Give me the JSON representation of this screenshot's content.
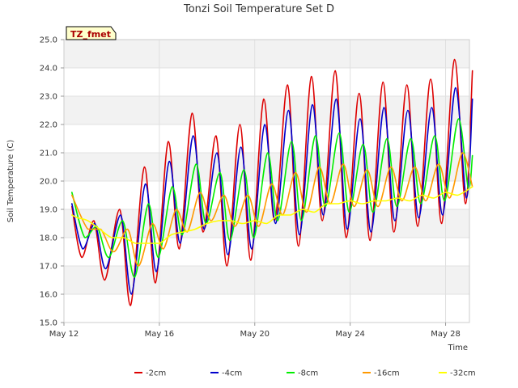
{
  "chart_data": {
    "type": "line",
    "title": "Tonzi Soil Temperature Set D",
    "xlabel": "Time",
    "ylabel": "Soil Temperature (C)",
    "annotation": "TZ_fmet",
    "ylim": [
      15.0,
      25.0
    ],
    "yticks": [
      "15.0",
      "16.0",
      "17.0",
      "18.0",
      "19.0",
      "20.0",
      "21.0",
      "22.0",
      "23.0",
      "24.0",
      "25.0"
    ],
    "xlim": [
      "2024-05-12",
      "2024-05-29"
    ],
    "xticks": [
      {
        "label": "May 12",
        "date": "2024-05-12"
      },
      {
        "label": "May 16",
        "date": "2024-05-16"
      },
      {
        "label": "May 20",
        "date": "2024-05-20"
      },
      {
        "label": "May 24",
        "date": "2024-05-24"
      },
      {
        "label": "May 28",
        "date": "2024-05-28"
      }
    ],
    "grid": true,
    "legend_position": "bottom",
    "series": [
      {
        "name": "-2cm",
        "color": "#dd0000",
        "points": [
          [
            "2024-05-12T08:00",
            19.1
          ],
          [
            "2024-05-12T18:00",
            17.3
          ],
          [
            "2024-05-13T06:00",
            18.6
          ],
          [
            "2024-05-13T17:00",
            16.5
          ],
          [
            "2024-05-14T08:00",
            19.0
          ],
          [
            "2024-05-14T19:00",
            15.6
          ],
          [
            "2024-05-15T09:00",
            20.5
          ],
          [
            "2024-05-15T20:00",
            16.4
          ],
          [
            "2024-05-16T09:00",
            21.4
          ],
          [
            "2024-05-16T20:00",
            17.6
          ],
          [
            "2024-05-17T09:00",
            22.4
          ],
          [
            "2024-05-17T20:00",
            18.2
          ],
          [
            "2024-05-18T09:00",
            21.6
          ],
          [
            "2024-05-18T20:00",
            17.0
          ],
          [
            "2024-05-19T09:00",
            22.0
          ],
          [
            "2024-05-19T20:00",
            17.2
          ],
          [
            "2024-05-20T09:00",
            22.9
          ],
          [
            "2024-05-20T20:00",
            18.6
          ],
          [
            "2024-05-21T09:00",
            23.4
          ],
          [
            "2024-05-21T20:00",
            17.7
          ],
          [
            "2024-05-22T09:00",
            23.7
          ],
          [
            "2024-05-22T20:00",
            18.6
          ],
          [
            "2024-05-23T09:00",
            23.9
          ],
          [
            "2024-05-23T20:00",
            18.0
          ],
          [
            "2024-05-24T09:00",
            23.1
          ],
          [
            "2024-05-24T20:00",
            17.9
          ],
          [
            "2024-05-25T09:00",
            23.5
          ],
          [
            "2024-05-25T20:00",
            18.2
          ],
          [
            "2024-05-26T09:00",
            23.4
          ],
          [
            "2024-05-26T20:00",
            18.4
          ],
          [
            "2024-05-27T09:00",
            23.6
          ],
          [
            "2024-05-27T20:00",
            18.5
          ],
          [
            "2024-05-28T09:00",
            24.3
          ],
          [
            "2024-05-28T20:00",
            19.2
          ],
          [
            "2024-05-29T03:00",
            23.9
          ]
        ]
      },
      {
        "name": "-4cm",
        "color": "#0000cc",
        "points": [
          [
            "2024-05-12T08:00",
            19.2
          ],
          [
            "2024-05-12T19:00",
            17.6
          ],
          [
            "2024-05-13T07:00",
            18.5
          ],
          [
            "2024-05-13T18:00",
            16.9
          ],
          [
            "2024-05-14T09:00",
            18.8
          ],
          [
            "2024-05-14T20:00",
            16.0
          ],
          [
            "2024-05-15T10:00",
            19.9
          ],
          [
            "2024-05-15T21:00",
            16.8
          ],
          [
            "2024-05-16T10:00",
            20.7
          ],
          [
            "2024-05-16T21:00",
            17.8
          ],
          [
            "2024-05-17T10:00",
            21.6
          ],
          [
            "2024-05-17T21:00",
            18.3
          ],
          [
            "2024-05-18T10:00",
            21.0
          ],
          [
            "2024-05-18T21:00",
            17.4
          ],
          [
            "2024-05-19T10:00",
            21.2
          ],
          [
            "2024-05-19T21:00",
            17.6
          ],
          [
            "2024-05-20T10:00",
            22.0
          ],
          [
            "2024-05-20T21:00",
            18.5
          ],
          [
            "2024-05-21T10:00",
            22.5
          ],
          [
            "2024-05-21T21:00",
            18.1
          ],
          [
            "2024-05-22T10:00",
            22.7
          ],
          [
            "2024-05-22T21:00",
            18.8
          ],
          [
            "2024-05-23T10:00",
            22.9
          ],
          [
            "2024-05-23T21:00",
            18.3
          ],
          [
            "2024-05-24T10:00",
            22.2
          ],
          [
            "2024-05-24T21:00",
            18.2
          ],
          [
            "2024-05-25T10:00",
            22.6
          ],
          [
            "2024-05-25T21:00",
            18.6
          ],
          [
            "2024-05-26T10:00",
            22.5
          ],
          [
            "2024-05-26T21:00",
            18.7
          ],
          [
            "2024-05-27T10:00",
            22.6
          ],
          [
            "2024-05-27T21:00",
            18.8
          ],
          [
            "2024-05-28T10:00",
            23.3
          ],
          [
            "2024-05-28T21:00",
            19.4
          ],
          [
            "2024-05-29T03:00",
            22.9
          ]
        ]
      },
      {
        "name": "-8cm",
        "color": "#00ee00",
        "points": [
          [
            "2024-05-12T08:00",
            19.6
          ],
          [
            "2024-05-12T21:00",
            18.0
          ],
          [
            "2024-05-13T09:00",
            18.4
          ],
          [
            "2024-05-13T21:00",
            17.3
          ],
          [
            "2024-05-14T11:00",
            18.6
          ],
          [
            "2024-05-14T23:00",
            16.6
          ],
          [
            "2024-05-15T13:00",
            19.2
          ],
          [
            "2024-05-15T23:00",
            17.3
          ],
          [
            "2024-05-16T13:00",
            19.8
          ],
          [
            "2024-05-16T23:00",
            18.1
          ],
          [
            "2024-05-17T13:00",
            20.6
          ],
          [
            "2024-05-17T23:00",
            18.5
          ],
          [
            "2024-05-18T13:00",
            20.3
          ],
          [
            "2024-05-18T23:00",
            17.9
          ],
          [
            "2024-05-19T13:00",
            20.4
          ],
          [
            "2024-05-19T23:00",
            18.0
          ],
          [
            "2024-05-20T13:00",
            21.0
          ],
          [
            "2024-05-20T23:00",
            18.6
          ],
          [
            "2024-05-21T13:00",
            21.4
          ],
          [
            "2024-05-21T23:00",
            18.6
          ],
          [
            "2024-05-22T13:00",
            21.6
          ],
          [
            "2024-05-22T23:00",
            19.1
          ],
          [
            "2024-05-23T13:00",
            21.7
          ],
          [
            "2024-05-23T23:00",
            18.9
          ],
          [
            "2024-05-24T13:00",
            21.3
          ],
          [
            "2024-05-24T23:00",
            18.9
          ],
          [
            "2024-05-25T13:00",
            21.5
          ],
          [
            "2024-05-25T23:00",
            19.1
          ],
          [
            "2024-05-26T13:00",
            21.5
          ],
          [
            "2024-05-26T23:00",
            19.2
          ],
          [
            "2024-05-27T13:00",
            21.6
          ],
          [
            "2024-05-27T23:00",
            19.3
          ],
          [
            "2024-05-28T13:00",
            22.2
          ],
          [
            "2024-05-28T23:00",
            19.7
          ],
          [
            "2024-05-29T03:00",
            20.9
          ]
        ]
      },
      {
        "name": "-16cm",
        "color": "#ff9900",
        "points": [
          [
            "2024-05-12T08:00",
            19.5
          ],
          [
            "2024-05-13T00:00",
            18.3
          ],
          [
            "2024-05-13T13:00",
            18.3
          ],
          [
            "2024-05-14T02:00",
            17.5
          ],
          [
            "2024-05-14T16:00",
            18.3
          ],
          [
            "2024-05-15T03:00",
            17.0
          ],
          [
            "2024-05-15T17:00",
            18.5
          ],
          [
            "2024-05-16T04:00",
            17.6
          ],
          [
            "2024-05-16T17:00",
            19.0
          ],
          [
            "2024-05-17T04:00",
            18.2
          ],
          [
            "2024-05-17T17:00",
            19.6
          ],
          [
            "2024-05-18T04:00",
            18.6
          ],
          [
            "2024-05-18T17:00",
            19.5
          ],
          [
            "2024-05-19T04:00",
            18.4
          ],
          [
            "2024-05-19T17:00",
            19.5
          ],
          [
            "2024-05-20T04:00",
            18.4
          ],
          [
            "2024-05-20T17:00",
            19.9
          ],
          [
            "2024-05-21T04:00",
            18.8
          ],
          [
            "2024-05-21T17:00",
            20.3
          ],
          [
            "2024-05-22T04:00",
            18.9
          ],
          [
            "2024-05-22T17:00",
            20.5
          ],
          [
            "2024-05-23T04:00",
            19.2
          ],
          [
            "2024-05-23T17:00",
            20.6
          ],
          [
            "2024-05-24T04:00",
            19.1
          ],
          [
            "2024-05-24T17:00",
            20.4
          ],
          [
            "2024-05-25T04:00",
            19.1
          ],
          [
            "2024-05-25T17:00",
            20.5
          ],
          [
            "2024-05-26T04:00",
            19.3
          ],
          [
            "2024-05-26T17:00",
            20.5
          ],
          [
            "2024-05-27T04:00",
            19.3
          ],
          [
            "2024-05-27T17:00",
            20.6
          ],
          [
            "2024-05-28T04:00",
            19.4
          ],
          [
            "2024-05-28T17:00",
            21.0
          ],
          [
            "2024-05-29T03:00",
            19.8
          ]
        ]
      },
      {
        "name": "-32cm",
        "color": "#ffff00",
        "points": [
          [
            "2024-05-12T08:00",
            18.8
          ],
          [
            "2024-05-12T14:00",
            18.7
          ],
          [
            "2024-05-13T00:00",
            18.6
          ],
          [
            "2024-05-13T12:00",
            18.3
          ],
          [
            "2024-05-14T00:00",
            18.0
          ],
          [
            "2024-05-14T12:00",
            18.0
          ],
          [
            "2024-05-15T00:00",
            17.8
          ],
          [
            "2024-05-15T12:00",
            17.8
          ],
          [
            "2024-05-16T00:00",
            17.8
          ],
          [
            "2024-05-16T12:00",
            18.1
          ],
          [
            "2024-05-17T00:00",
            18.2
          ],
          [
            "2024-05-17T12:00",
            18.3
          ],
          [
            "2024-05-18T00:00",
            18.5
          ],
          [
            "2024-05-18T12:00",
            18.6
          ],
          [
            "2024-05-19T00:00",
            18.6
          ],
          [
            "2024-05-19T12:00",
            18.5
          ],
          [
            "2024-05-20T00:00",
            18.6
          ],
          [
            "2024-05-20T12:00",
            18.5
          ],
          [
            "2024-05-21T00:00",
            18.8
          ],
          [
            "2024-05-21T12:00",
            18.8
          ],
          [
            "2024-05-22T00:00",
            19.0
          ],
          [
            "2024-05-22T12:00",
            18.9
          ],
          [
            "2024-05-23T00:00",
            19.2
          ],
          [
            "2024-05-23T12:00",
            19.2
          ],
          [
            "2024-05-24T00:00",
            19.3
          ],
          [
            "2024-05-24T12:00",
            19.2
          ],
          [
            "2024-05-25T00:00",
            19.3
          ],
          [
            "2024-05-25T12:00",
            19.3
          ],
          [
            "2024-05-26T00:00",
            19.4
          ],
          [
            "2024-05-26T12:00",
            19.3
          ],
          [
            "2024-05-27T00:00",
            19.5
          ],
          [
            "2024-05-27T12:00",
            19.4
          ],
          [
            "2024-05-28T00:00",
            19.6
          ],
          [
            "2024-05-28T12:00",
            19.5
          ],
          [
            "2024-05-29T03:00",
            19.8
          ]
        ]
      }
    ]
  }
}
